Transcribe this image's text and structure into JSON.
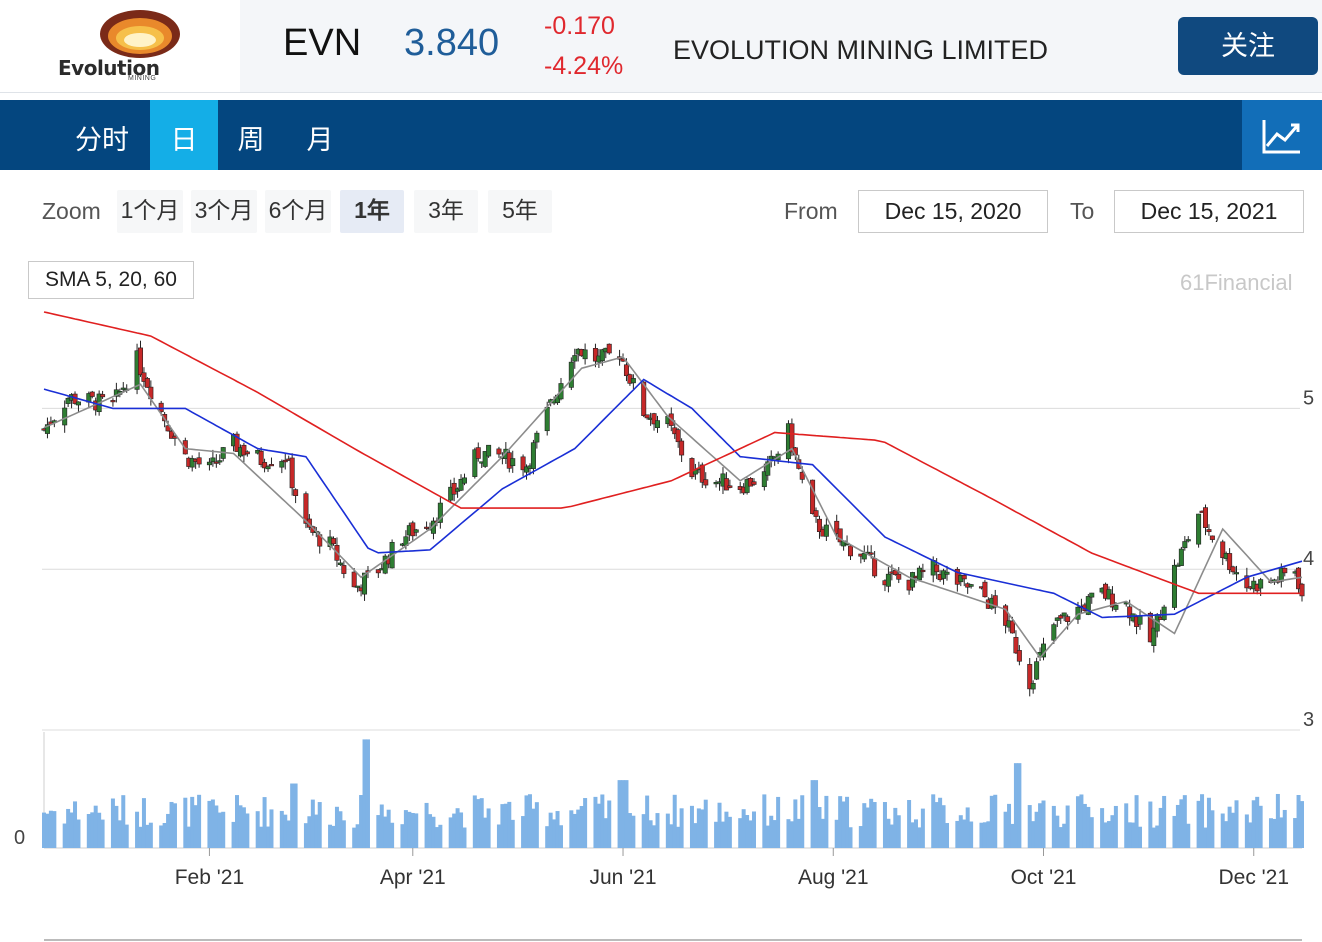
{
  "header": {
    "logo_text": "Evolution",
    "logo_sub": "MINING",
    "ticker": "EVN",
    "price": "3.840",
    "change": "-0.170",
    "change_pct": "-4.24%",
    "company": "EVOLUTION MINING LIMITED",
    "follow_label": "关注"
  },
  "tabs": [
    {
      "label": "分时",
      "active": false
    },
    {
      "label": "日",
      "active": true
    },
    {
      "label": "周",
      "active": false
    },
    {
      "label": "月",
      "active": false
    }
  ],
  "toolbar": {
    "zoom_label": "Zoom",
    "zoom_options": [
      "1个月",
      "3个月",
      "6个月",
      "1年",
      "3年",
      "5年"
    ],
    "zoom_active": "1年",
    "from_label": "From",
    "from_value": "Dec 15, 2020",
    "to_label": "To",
    "to_value": "Dec 15, 2021"
  },
  "indicator_label": "SMA 5, 20, 60",
  "credit": "61Financial",
  "colors": {
    "up": "#2e7d32",
    "down": "#c62828",
    "sma5": "#8c8c8c",
    "sma20": "#1a2fd6",
    "sma60": "#e02020",
    "volume": "#7fb3e6",
    "brand": "#04467f",
    "accent": "#14aee7"
  },
  "chart_data": {
    "type": "candlestick",
    "y_ticks": [
      3,
      4,
      5
    ],
    "ylim": [
      3,
      5.55
    ],
    "volume_tick": "0",
    "x_tick_labels": [
      "Feb '21",
      "Apr '21",
      "Jun '21",
      "Aug '21",
      "Oct '21",
      "Dec '21"
    ],
    "x_tick_dates": [
      "2021-02-01",
      "2021-04-01",
      "2021-06-01",
      "2021-08-01",
      "2021-10-01",
      "2021-12-01"
    ],
    "date_range": [
      "2020-12-15",
      "2021-12-15"
    ],
    "close_anchors": [
      [
        "2020-12-15",
        4.87
      ],
      [
        "2020-12-22",
        5.07
      ],
      [
        "2021-01-04",
        5.02
      ],
      [
        "2021-01-11",
        5.3
      ],
      [
        "2021-01-18",
        4.98
      ],
      [
        "2021-01-25",
        4.7
      ],
      [
        "2021-02-01",
        4.62
      ],
      [
        "2021-02-08",
        4.78
      ],
      [
        "2021-02-16",
        4.68
      ],
      [
        "2021-02-23",
        4.7
      ],
      [
        "2021-03-01",
        4.25
      ],
      [
        "2021-03-08",
        4.15
      ],
      [
        "2021-03-15",
        3.88
      ],
      [
        "2021-03-22",
        4.0
      ],
      [
        "2021-03-29",
        4.2
      ],
      [
        "2021-04-06",
        4.3
      ],
      [
        "2021-04-13",
        4.48
      ],
      [
        "2021-04-20",
        4.72
      ],
      [
        "2021-04-27",
        4.7
      ],
      [
        "2021-05-04",
        4.65
      ],
      [
        "2021-05-11",
        5.02
      ],
      [
        "2021-05-18",
        5.38
      ],
      [
        "2021-05-25",
        5.3
      ],
      [
        "2021-05-31",
        5.35
      ],
      [
        "2021-06-07",
        4.98
      ],
      [
        "2021-06-14",
        4.9
      ],
      [
        "2021-06-21",
        4.6
      ],
      [
        "2021-06-28",
        4.55
      ],
      [
        "2021-07-05",
        4.52
      ],
      [
        "2021-07-12",
        4.58
      ],
      [
        "2021-07-19",
        4.85
      ],
      [
        "2021-07-26",
        4.3
      ],
      [
        "2021-08-02",
        4.18
      ],
      [
        "2021-08-09",
        4.1
      ],
      [
        "2021-08-16",
        3.95
      ],
      [
        "2021-08-23",
        3.92
      ],
      [
        "2021-08-30",
        4.0
      ],
      [
        "2021-09-06",
        3.92
      ],
      [
        "2021-09-13",
        3.85
      ],
      [
        "2021-09-20",
        3.68
      ],
      [
        "2021-09-27",
        3.3
      ],
      [
        "2021-10-04",
        3.65
      ],
      [
        "2021-10-11",
        3.75
      ],
      [
        "2021-10-18",
        3.85
      ],
      [
        "2021-10-25",
        3.78
      ],
      [
        "2021-11-01",
        3.55
      ],
      [
        "2021-11-08",
        4.0
      ],
      [
        "2021-11-15",
        4.35
      ],
      [
        "2021-11-22",
        4.1
      ],
      [
        "2021-11-29",
        3.9
      ],
      [
        "2021-12-06",
        3.92
      ],
      [
        "2021-12-13",
        4.0
      ],
      [
        "2021-12-15",
        3.84
      ]
    ],
    "sma_series": [
      {
        "name": "SMA 5",
        "anchors": [
          [
            "2020-12-15",
            4.88
          ],
          [
            "2021-01-12",
            5.15
          ],
          [
            "2021-01-25",
            4.75
          ],
          [
            "2021-02-08",
            4.72
          ],
          [
            "2021-03-01",
            4.3
          ],
          [
            "2021-03-17",
            3.95
          ],
          [
            "2021-04-06",
            4.25
          ],
          [
            "2021-04-27",
            4.7
          ],
          [
            "2021-05-20",
            5.25
          ],
          [
            "2021-06-01",
            5.32
          ],
          [
            "2021-06-14",
            4.95
          ],
          [
            "2021-07-05",
            4.55
          ],
          [
            "2021-07-20",
            4.75
          ],
          [
            "2021-08-02",
            4.2
          ],
          [
            "2021-08-23",
            3.95
          ],
          [
            "2021-09-20",
            3.75
          ],
          [
            "2021-09-30",
            3.45
          ],
          [
            "2021-10-11",
            3.72
          ],
          [
            "2021-10-25",
            3.8
          ],
          [
            "2021-11-08",
            3.6
          ],
          [
            "2021-11-22",
            4.25
          ],
          [
            "2021-12-06",
            3.92
          ],
          [
            "2021-12-15",
            3.95
          ]
        ]
      },
      {
        "name": "SMA 20",
        "anchors": [
          [
            "2020-12-15",
            5.12
          ],
          [
            "2021-01-04",
            5.0
          ],
          [
            "2021-01-25",
            5.0
          ],
          [
            "2021-02-15",
            4.75
          ],
          [
            "2021-03-01",
            4.7
          ],
          [
            "2021-03-20",
            4.1
          ],
          [
            "2021-04-06",
            4.12
          ],
          [
            "2021-04-27",
            4.5
          ],
          [
            "2021-05-18",
            4.75
          ],
          [
            "2021-06-07",
            5.18
          ],
          [
            "2021-06-21",
            5.0
          ],
          [
            "2021-07-05",
            4.7
          ],
          [
            "2021-07-26",
            4.65
          ],
          [
            "2021-08-16",
            4.2
          ],
          [
            "2021-09-06",
            3.98
          ],
          [
            "2021-10-04",
            3.85
          ],
          [
            "2021-10-18",
            3.7
          ],
          [
            "2021-11-08",
            3.72
          ],
          [
            "2021-11-29",
            3.95
          ],
          [
            "2021-12-15",
            4.05
          ]
        ]
      },
      {
        "name": "SMA 60",
        "anchors": [
          [
            "2020-12-15",
            5.6
          ],
          [
            "2021-01-15",
            5.45
          ],
          [
            "2021-02-15",
            5.1
          ],
          [
            "2021-03-15",
            4.75
          ],
          [
            "2021-04-15",
            4.38
          ],
          [
            "2021-05-15",
            4.38
          ],
          [
            "2021-06-15",
            4.55
          ],
          [
            "2021-07-15",
            4.85
          ],
          [
            "2021-08-15",
            4.8
          ],
          [
            "2021-09-15",
            4.45
          ],
          [
            "2021-10-15",
            4.1
          ],
          [
            "2021-11-15",
            3.85
          ],
          [
            "2021-12-15",
            3.85
          ]
        ]
      }
    ],
    "volume_spikes": [
      [
        "2021-03-19",
        3.2
      ],
      [
        "2021-09-24",
        2.5
      ],
      [
        "2021-07-26",
        2.0
      ],
      [
        "2021-02-26",
        1.9
      ],
      [
        "2021-06-01",
        2.0
      ]
    ]
  }
}
